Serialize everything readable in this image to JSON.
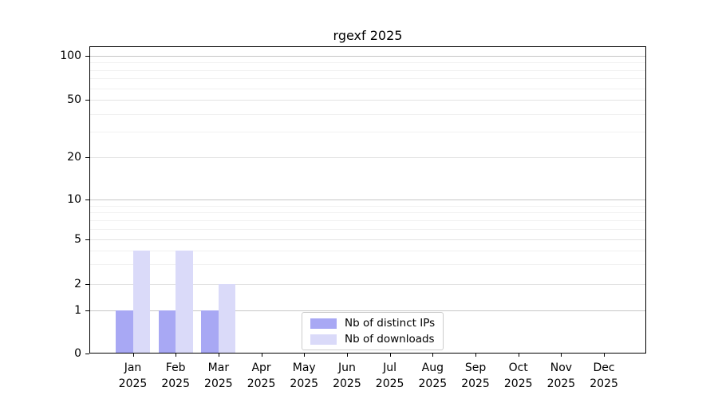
{
  "chart_data": {
    "type": "bar",
    "title": "rgexf 2025",
    "categories": [
      "Jan",
      "Feb",
      "Mar",
      "Apr",
      "May",
      "Jun",
      "Jul",
      "Aug",
      "Sep",
      "Oct",
      "Nov",
      "Dec"
    ],
    "category_year": "2025",
    "series": [
      {
        "name": "Nb of distinct IPs",
        "color": "#a8a8f4",
        "values": [
          1,
          1,
          1,
          0,
          0,
          0,
          0,
          0,
          0,
          0,
          0,
          0
        ]
      },
      {
        "name": "Nb of downloads",
        "color": "#dadaf9",
        "values": [
          4,
          4,
          2,
          0,
          0,
          0,
          0,
          0,
          0,
          0,
          0,
          0
        ]
      }
    ],
    "y_ticks": [
      100,
      50,
      20,
      10,
      5,
      2,
      1,
      0
    ],
    "y_gridlines_strong": [
      1,
      10,
      100
    ],
    "y_gridlines_soft": [
      2,
      5,
      20,
      50
    ],
    "y_gridlines_minor": [
      3,
      4,
      6,
      7,
      8,
      9,
      30,
      40,
      60,
      70,
      80,
      90
    ],
    "yscale": "log-like (1-2-5 tick sequence), 0 at baseline",
    "ylim": [
      0,
      116
    ],
    "xlabel": "",
    "ylabel": "",
    "grid": true,
    "legend_position": "lower center",
    "colors": {
      "background": "#ffffff",
      "axis": "#000000",
      "grid_strong": "#c6c6c6",
      "grid_soft": "#e3e3e3",
      "grid_minor": "#f1f1f1",
      "legend_border": "#cccccc"
    }
  }
}
